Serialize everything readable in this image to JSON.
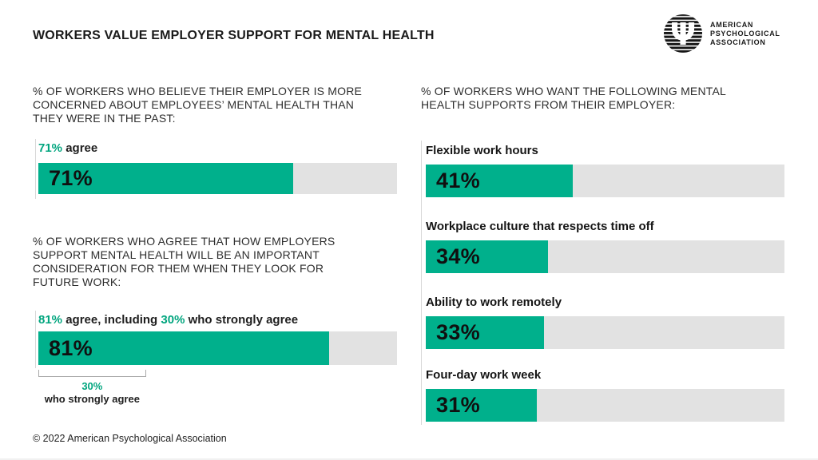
{
  "header": {
    "title": "WORKERS VALUE EMPLOYER SUPPORT FOR MENTAL HEALTH",
    "logo_lines": [
      "AMERICAN",
      "PSYCHOLOGICAL",
      "ASSOCIATION"
    ]
  },
  "footer": {
    "copyright": "© 2022 American Psychological Association"
  },
  "colors": {
    "bar_green": "#00B08C",
    "track_gray": "#E2E2E2",
    "accent_text_green": "#00A57E",
    "axis_gray": "#D8D8D8",
    "bracket_gray": "#A9A9A9",
    "text_dark": "#1E1E1E"
  },
  "chart_data": [
    {
      "type": "bar",
      "orientation": "horizontal",
      "title": "% OF WORKERS WHO BELIEVE THEIR EMPLOYER IS MORE CONCERNED ABOUT EMPLOYEES’ MENTAL HEALTH THAN THEY WERE IN THE PAST:",
      "title_lines": [
        "% OF WORKERS WHO BELIEVE THEIR EMPLOYER IS MORE",
        "CONCERNED ABOUT EMPLOYEES’ MENTAL HEALTH THAN",
        "THEY WERE IN THE PAST:"
      ],
      "categories": [
        "agree"
      ],
      "values": [
        71
      ],
      "xlim": [
        0,
        100
      ],
      "grid": false,
      "legend": false,
      "bar_label": "71%",
      "caption": {
        "highlight": "71%",
        "rest": " agree"
      }
    },
    {
      "type": "bar",
      "orientation": "horizontal",
      "title": "% OF WORKERS WHO AGREE THAT HOW EMPLOYERS SUPPORT MENTAL HEALTH WILL BE AN IMPORTANT CONSIDERATION FOR THEM WHEN THEY LOOK FOR FUTURE WORK:",
      "title_lines": [
        "% OF WORKERS WHO AGREE THAT HOW EMPLOYERS",
        "SUPPORT MENTAL HEALTH WILL BE AN IMPORTANT",
        "CONSIDERATION FOR THEM WHEN THEY LOOK FOR",
        "FUTURE WORK:"
      ],
      "categories": [
        "agree"
      ],
      "values": [
        81
      ],
      "sub_values": [
        30
      ],
      "xlim": [
        0,
        100
      ],
      "grid": false,
      "legend": false,
      "bar_label": "81%",
      "caption": {
        "highlight": "81%",
        "mid": " agree, including ",
        "highlight2": "30%",
        "rest": " who strongly agree"
      },
      "annotation": {
        "pct": "30%",
        "label": "who strongly agree",
        "value": 30
      }
    },
    {
      "type": "bar",
      "orientation": "horizontal",
      "title": "% OF WORKERS WHO WANT THE FOLLOWING MENTAL HEALTH SUPPORTS FROM THEIR EMPLOYER:",
      "title_lines": [
        "% OF WORKERS WHO WANT THE FOLLOWING MENTAL",
        "HEALTH SUPPORTS FROM THEIR EMPLOYER:"
      ],
      "categories": [
        "Flexible work hours",
        "Workplace culture that respects time off",
        "Ability to work remotely",
        "Four-day work week"
      ],
      "values": [
        41,
        34,
        33,
        31
      ],
      "bar_labels": [
        "41%",
        "34%",
        "33%",
        "31%"
      ],
      "xlim": [
        0,
        100
      ],
      "grid": false,
      "legend": false
    }
  ]
}
